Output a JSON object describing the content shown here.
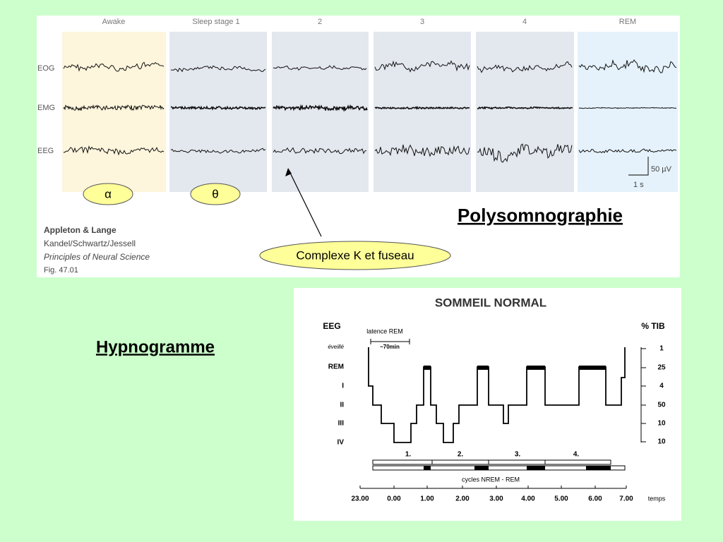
{
  "polysomnography": {
    "stages": [
      "Awake",
      "Sleep stage 1",
      "2",
      "3",
      "4",
      "REM"
    ],
    "channels": [
      "EOG",
      "EMG",
      "EEG"
    ],
    "scale_voltage": "50 µV",
    "scale_time": "1 s",
    "wave_labels": [
      "α",
      "θ"
    ],
    "annotation": "Complexe K et fuseau",
    "title": "Polysomnographie",
    "credit": [
      "Appleton & Lange",
      "Kandel/Schwartz/Jessell",
      "Principles of Neural Science",
      "Fig. 47.01"
    ]
  },
  "hypnogram": {
    "label": "Hypnogramme",
    "title": "SOMMEIL NORMAL",
    "left_axis_title": "EEG",
    "right_axis_title": "% TIB",
    "stages": [
      "éveillé",
      "REM",
      "I",
      "II",
      "III",
      "IV"
    ],
    "percentages": [
      "1",
      "25",
      "4",
      "50",
      "10",
      "10"
    ],
    "latency_label": "latence REM",
    "latency_value": "~70min",
    "cycles": [
      "1.",
      "2.",
      "3.",
      "4."
    ],
    "cycles_label": "cycles NREM - REM",
    "times": [
      "23.00",
      "0.00",
      "1.00",
      "2.00",
      "3.00",
      "4.00",
      "5.00",
      "6.00",
      "7.00"
    ],
    "time_unit": "temps"
  }
}
